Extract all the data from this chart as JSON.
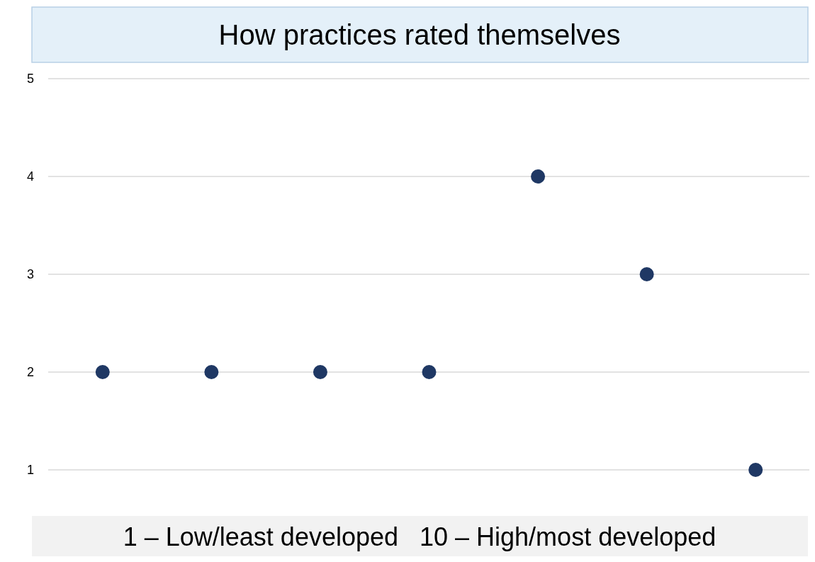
{
  "chart_data": {
    "type": "scatter",
    "title": "How practices rated themselves",
    "xlabel": "1 – Low/least developed   10 – High/most developed",
    "categories": [
      null,
      null,
      null,
      null,
      null,
      null,
      null
    ],
    "series": [
      {
        "color": "#1f3864",
        "values": [
          2,
          2,
          2,
          2,
          4,
          3,
          1
        ]
      }
    ],
    "ylim": [
      1,
      5
    ],
    "yticks": [
      1,
      2,
      3,
      4,
      5
    ],
    "grid": "y",
    "marker": "circle"
  }
}
